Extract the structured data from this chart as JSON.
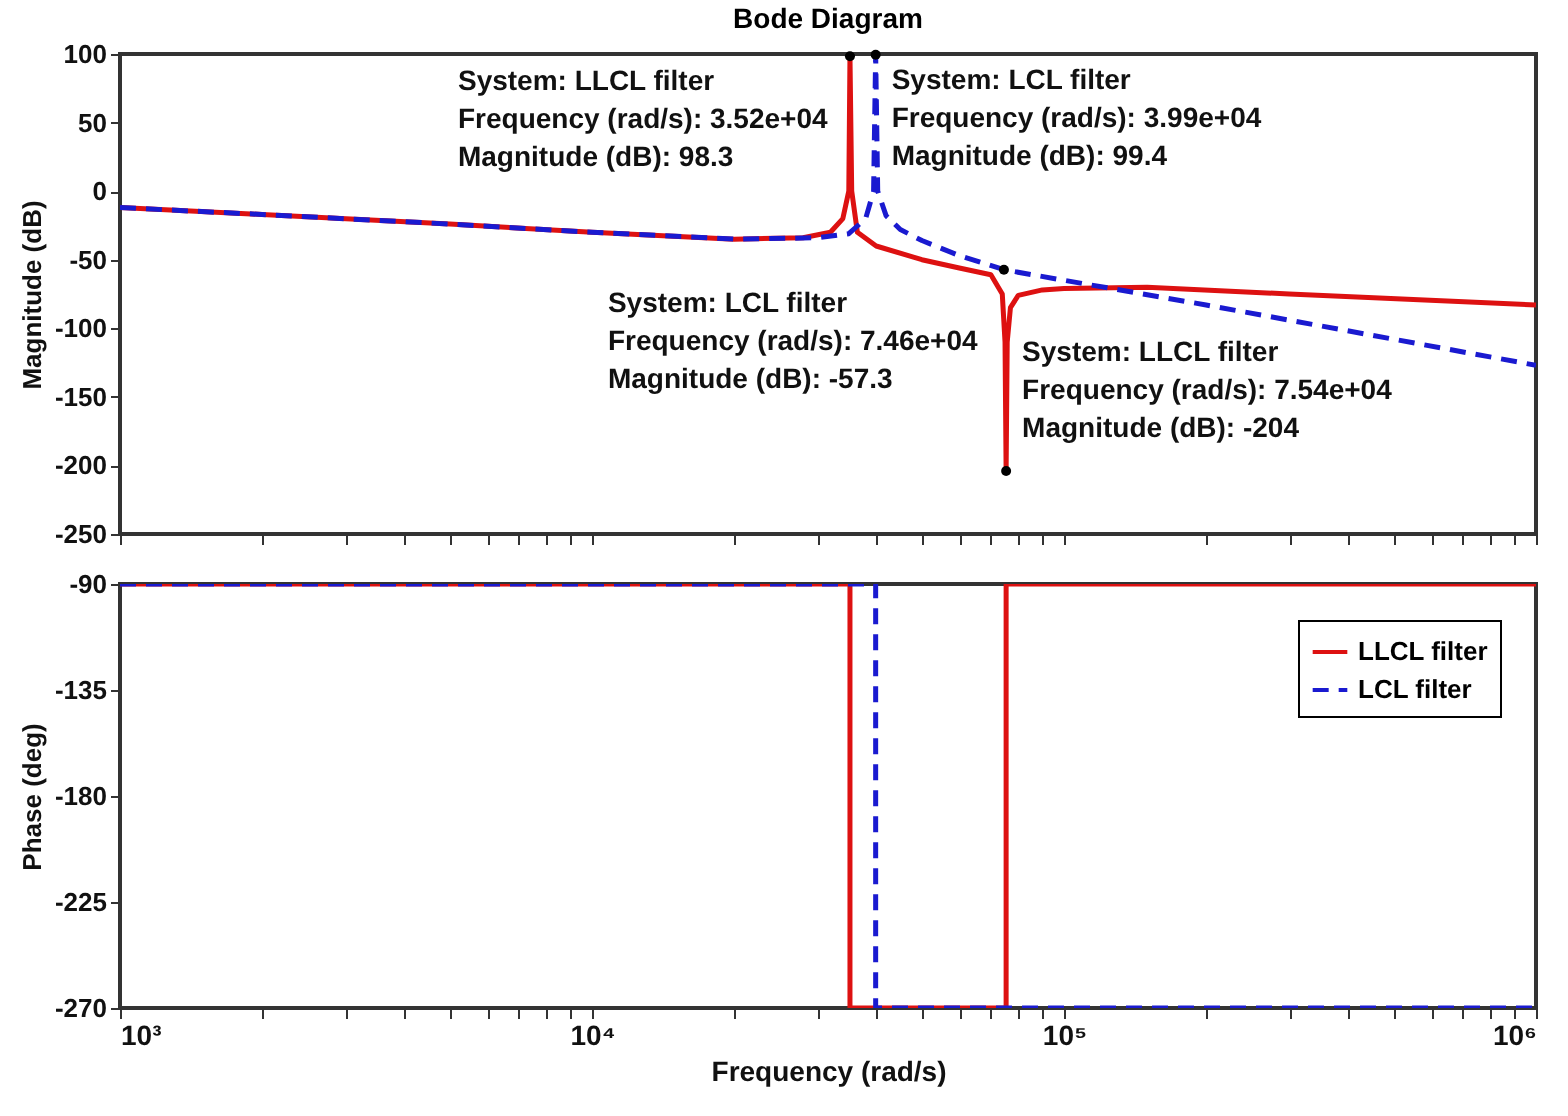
{
  "chart_data": [
    {
      "type": "line",
      "title": "Bode Diagram",
      "ylabel": "Magnitude (dB)",
      "log": "x",
      "tick_labels": "y",
      "xlim": [
        1000,
        1000000
      ],
      "xticks": [
        {
          "value": 1000,
          "label": null
        },
        {
          "value": 2000,
          "label": null
        },
        {
          "value": 3000,
          "label": null
        },
        {
          "value": 4000,
          "label": null
        },
        {
          "value": 5000,
          "label": null
        },
        {
          "value": 6000,
          "label": null
        },
        {
          "value": 7000,
          "label": null
        },
        {
          "value": 8000,
          "label": null
        },
        {
          "value": 9000,
          "label": null
        },
        {
          "value": 10000,
          "label": null
        },
        {
          "value": 20000,
          "label": null
        },
        {
          "value": 30000,
          "label": null
        },
        {
          "value": 40000,
          "label": null
        },
        {
          "value": 50000,
          "label": null
        },
        {
          "value": 60000,
          "label": null
        },
        {
          "value": 70000,
          "label": null
        },
        {
          "value": 80000,
          "label": null
        },
        {
          "value": 90000,
          "label": null
        },
        {
          "value": 100000,
          "label": null
        },
        {
          "value": 200000,
          "label": null
        },
        {
          "value": 300000,
          "label": null
        },
        {
          "value": 400000,
          "label": null
        },
        {
          "value": 500000,
          "label": null
        },
        {
          "value": 600000,
          "label": null
        },
        {
          "value": 700000,
          "label": null
        },
        {
          "value": 800000,
          "label": null
        },
        {
          "value": 900000,
          "label": null
        },
        {
          "value": 1000000,
          "label": null
        }
      ],
      "ylim": [
        -250,
        100
      ],
      "yticks": [
        -250,
        -200,
        -150,
        -100,
        -50,
        0,
        50,
        100
      ],
      "series": [
        {
          "color": "#dd1111",
          "line_style": "solid",
          "x": [
            1000,
            2000,
            5000,
            10000,
            20000,
            28000,
            32000,
            34000,
            35000,
            35200,
            35500,
            36500,
            40000,
            50000,
            60000,
            70000,
            74000,
            75000,
            75400,
            75800,
            77000,
            80000,
            90000,
            100000,
            150000,
            300000,
            1000000
          ],
          "values": [
            -12,
            -17,
            -24,
            -30,
            -35,
            -34,
            -30,
            -20,
            0,
            98.3,
            0,
            -30,
            -40,
            -50,
            -56,
            -61,
            -75,
            -110,
            -204,
            -110,
            -85,
            -76,
            -72,
            -71,
            -70,
            -75,
            -83
          ]
        },
        {
          "color": "#1a1ad0",
          "line_style": "dashed",
          "x": [
            1000,
            2000,
            5000,
            10000,
            20000,
            30000,
            35000,
            38000,
            39500,
            39900,
            40300,
            42000,
            45000,
            50000,
            60000,
            74600,
            100000,
            200000,
            500000,
            1000000
          ],
          "values": [
            -12,
            -17,
            -24,
            -30,
            -35,
            -34,
            -31,
            -20,
            0,
            99.4,
            0,
            -18,
            -28,
            -36,
            -47,
            -57.3,
            -65,
            -83,
            -108,
            -127
          ]
        }
      ],
      "annotations": [
        {
          "text": "System: LLCL filter\nFrequency (rad/s): 3.52e+04\nMagnitude (dB): 98.3",
          "x": 35200,
          "y": 98.3
        },
        {
          "text": "System: LCL filter\nFrequency (rad/s): 3.99e+04\nMagnitude (dB): 99.4",
          "x": 39900,
          "y": 99.4
        },
        {
          "text": "System: LCL filter\nFrequency (rad/s): 7.46e+04\nMagnitude (dB): -57.3",
          "x": 74600,
          "y": -57.3
        },
        {
          "text": "System: LLCL filter\nFrequency (rad/s): 7.54e+04\nMagnitude (dB): -204",
          "x": 75400,
          "y": -204
        }
      ]
    },
    {
      "type": "line",
      "xlabel": "Frequency  (rad/s)",
      "ylabel": "Phase (deg)",
      "log": "x",
      "legend": "top right",
      "xlim": [
        1000,
        1000000
      ],
      "xticks": [
        {
          "value": 1000,
          "label": "10³"
        },
        {
          "value": 2000,
          "label": null
        },
        {
          "value": 3000,
          "label": null
        },
        {
          "value": 4000,
          "label": null
        },
        {
          "value": 5000,
          "label": null
        },
        {
          "value": 6000,
          "label": null
        },
        {
          "value": 7000,
          "label": null
        },
        {
          "value": 8000,
          "label": null
        },
        {
          "value": 9000,
          "label": null
        },
        {
          "value": 10000,
          "label": "10⁴"
        },
        {
          "value": 20000,
          "label": null
        },
        {
          "value": 30000,
          "label": null
        },
        {
          "value": 40000,
          "label": null
        },
        {
          "value": 50000,
          "label": null
        },
        {
          "value": 60000,
          "label": null
        },
        {
          "value": 70000,
          "label": null
        },
        {
          "value": 80000,
          "label": null
        },
        {
          "value": 90000,
          "label": null
        },
        {
          "value": 100000,
          "label": "10⁵"
        },
        {
          "value": 200000,
          "label": null
        },
        {
          "value": 300000,
          "label": null
        },
        {
          "value": 400000,
          "label": null
        },
        {
          "value": 500000,
          "label": null
        },
        {
          "value": 600000,
          "label": null
        },
        {
          "value": 700000,
          "label": null
        },
        {
          "value": 800000,
          "label": null
        },
        {
          "value": 900000,
          "label": null
        },
        {
          "value": 1000000,
          "label": "10⁶"
        }
      ],
      "ylim": [
        -270,
        -90
      ],
      "yticks": [
        -270,
        -225,
        -180,
        -135,
        -90
      ],
      "series": [
        {
          "name": "LLCL filter",
          "color": "#dd1111",
          "line_style": "solid",
          "x": [
            1000,
            35200,
            35200,
            75400,
            75400,
            1000000
          ],
          "values": [
            -90,
            -90,
            -270,
            -270,
            -90,
            -90
          ]
        },
        {
          "name": "LCL filter",
          "color": "#1a1ad0",
          "line_style": "dashed",
          "x": [
            1000,
            39900,
            39900,
            1000000
          ],
          "values": [
            -90,
            -90,
            -270,
            -270
          ]
        }
      ]
    }
  ]
}
